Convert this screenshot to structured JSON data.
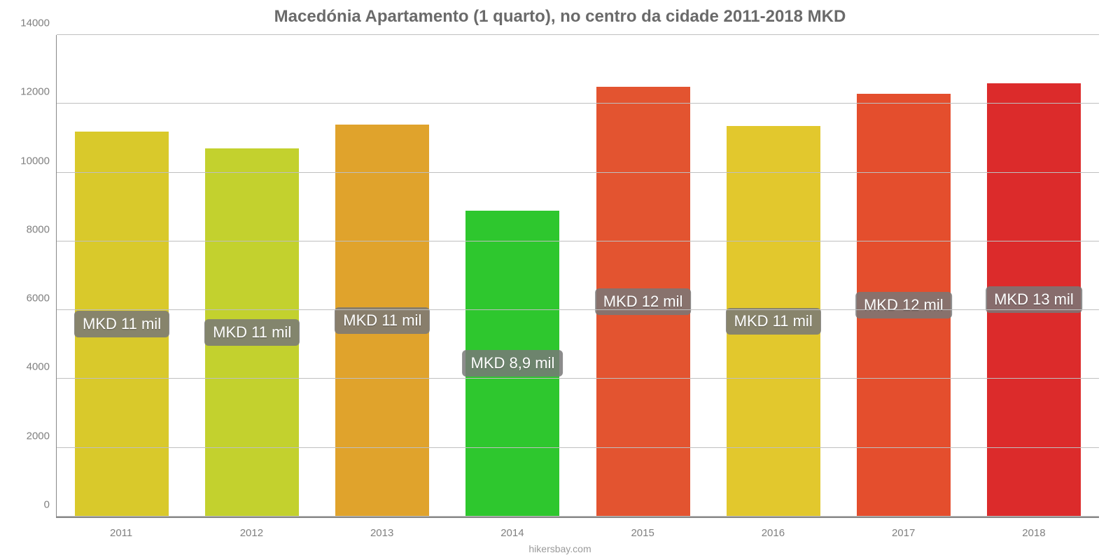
{
  "chart": {
    "type": "bar",
    "title": "Macedónia Apartamento (1 quarto), no centro da cidade 2011-2018 MKD",
    "title_fontsize": 24,
    "title_color": "#6a6a6a",
    "categories": [
      "2011",
      "2012",
      "2013",
      "2014",
      "2015",
      "2016",
      "2017",
      "2018"
    ],
    "values": [
      11200,
      10700,
      11400,
      8900,
      12500,
      11350,
      12300,
      12600
    ],
    "bar_labels": [
      "MKD 11 mil",
      "MKD 11 mil",
      "MKD 11 mil",
      "MKD 8,9 mil",
      "MKD 12 mil",
      "MKD 11 mil",
      "MKD 12 mil",
      "MKD 13 mil"
    ],
    "bar_colors": [
      "#d9c92b",
      "#c3d12e",
      "#e0a32c",
      "#2ec72e",
      "#e35430",
      "#e2c82d",
      "#e44e2d",
      "#dc2b2b"
    ],
    "bar_width_pct": 72,
    "ylim": [
      0,
      14000
    ],
    "ytick_step": 2000,
    "yticks": [
      "0",
      "2000",
      "4000",
      "6000",
      "8000",
      "10000",
      "12000",
      "14000"
    ],
    "background_color": "#ffffff",
    "grid_color": "#bfbfbf",
    "axis_color": "#888888",
    "tick_fontsize": 15,
    "tick_color": "#808080",
    "bar_label_fontsize": 22,
    "bar_label_bg": "rgba(120,120,120,0.85)",
    "bar_label_color": "#ffffff",
    "source_text": "hikersbay.com",
    "source_fontsize": 14,
    "source_color": "#9a9a9a"
  }
}
